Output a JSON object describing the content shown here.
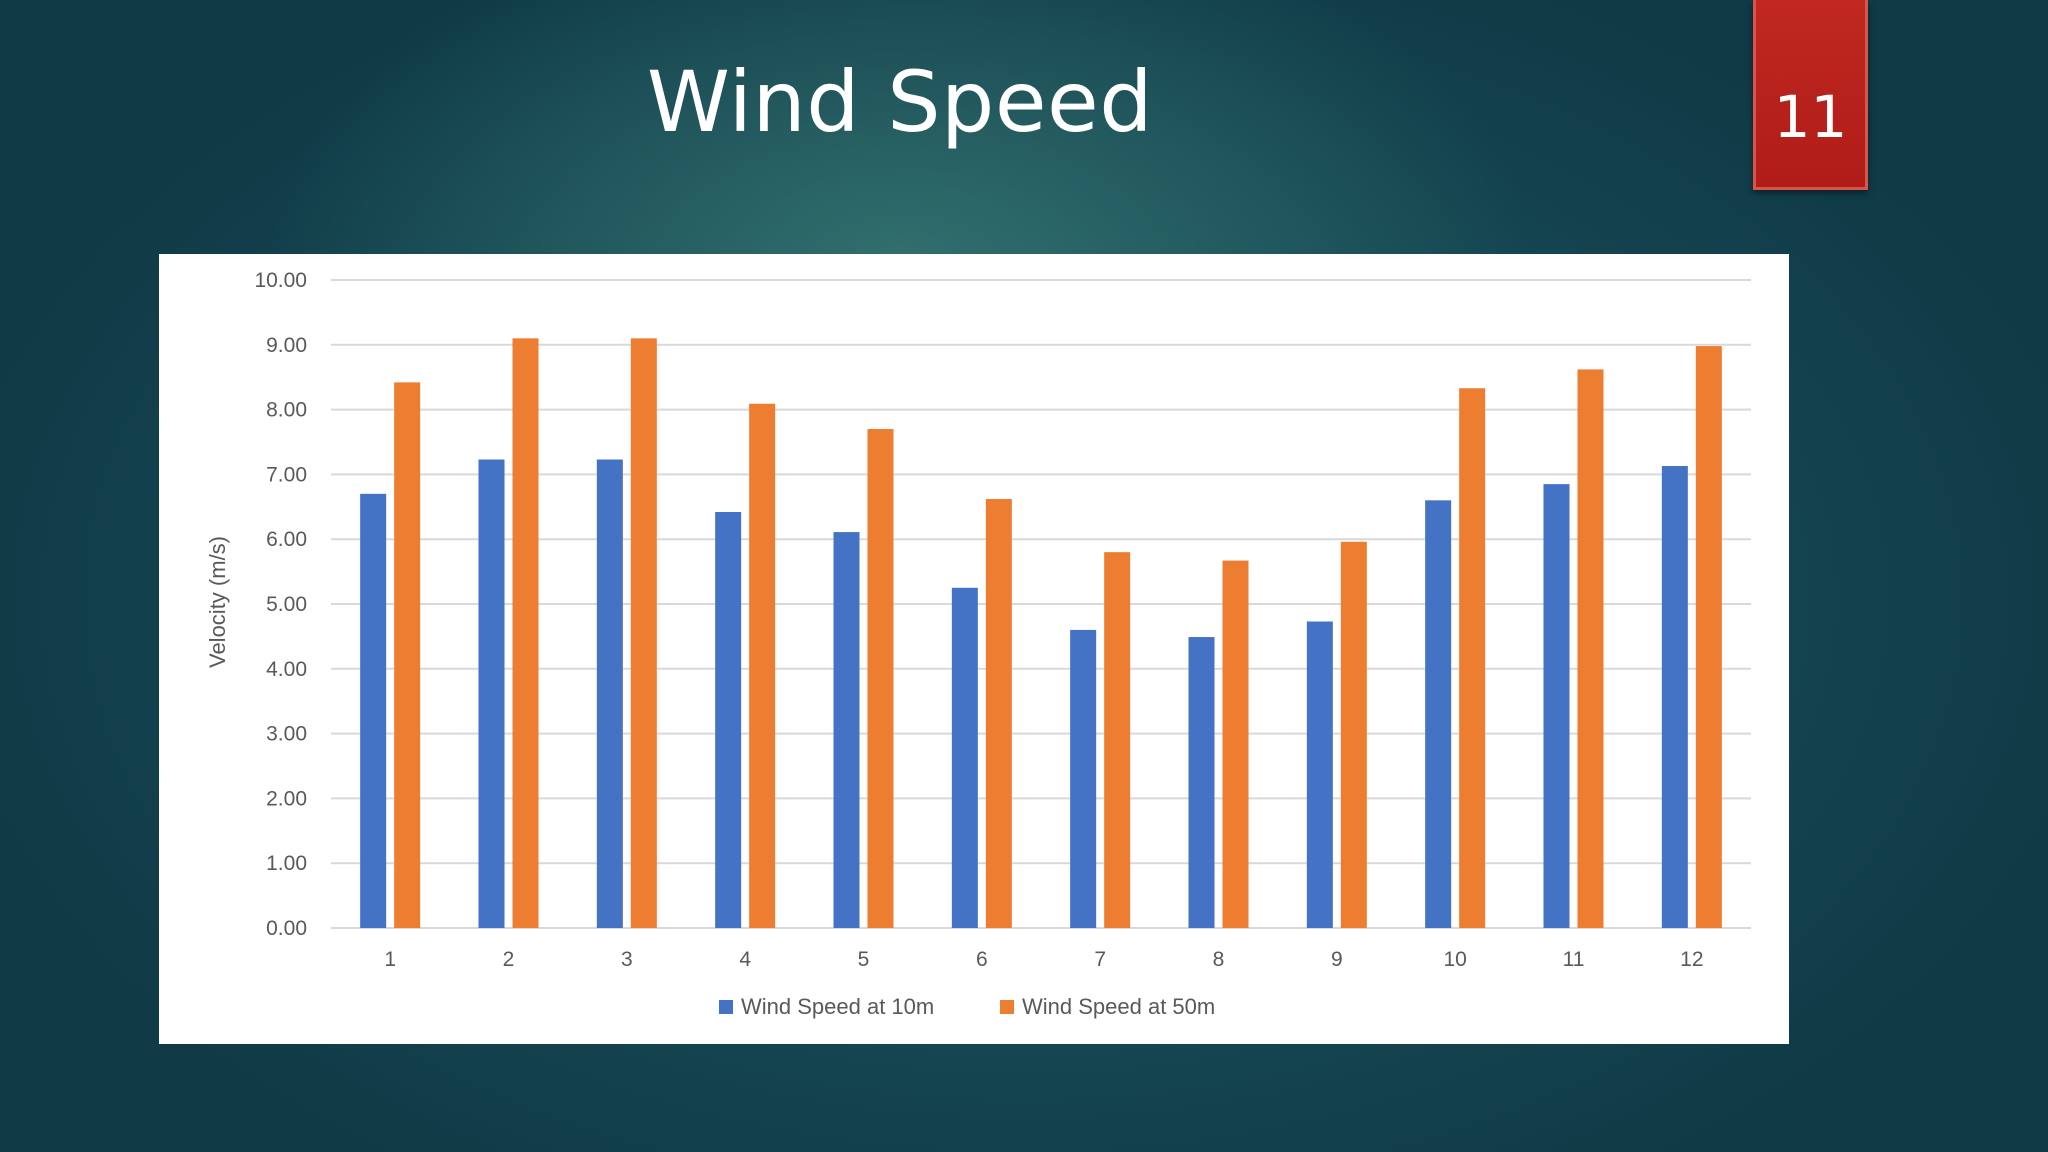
{
  "slide": {
    "title": "Wind Speed",
    "number": "11"
  },
  "colors": {
    "series_10m": "#4472C4",
    "series_50m": "#ED7D31",
    "gridline": "#D9D9D9",
    "slide_number_bg": "#B81F19"
  },
  "chart_data": {
    "type": "bar",
    "title": "",
    "xlabel": "",
    "ylabel": "Velocity (m/s)",
    "ylim": [
      0,
      10
    ],
    "yticks": [
      "0.00",
      "1.00",
      "2.00",
      "3.00",
      "4.00",
      "5.00",
      "6.00",
      "7.00",
      "8.00",
      "9.00",
      "10.00"
    ],
    "categories": [
      "1",
      "2",
      "3",
      "4",
      "5",
      "6",
      "7",
      "8",
      "9",
      "10",
      "11",
      "12"
    ],
    "series": [
      {
        "name": "Wind Speed at 10m",
        "values": [
          6.7,
          7.23,
          7.23,
          6.42,
          6.11,
          5.25,
          4.6,
          4.49,
          4.73,
          6.6,
          6.85,
          7.13
        ]
      },
      {
        "name": "Wind Speed at 50m",
        "values": [
          8.42,
          9.1,
          9.1,
          8.09,
          7.7,
          6.62,
          5.8,
          5.67,
          5.96,
          8.33,
          8.62,
          8.98
        ]
      }
    ],
    "grid": true,
    "legend_position": "bottom"
  }
}
